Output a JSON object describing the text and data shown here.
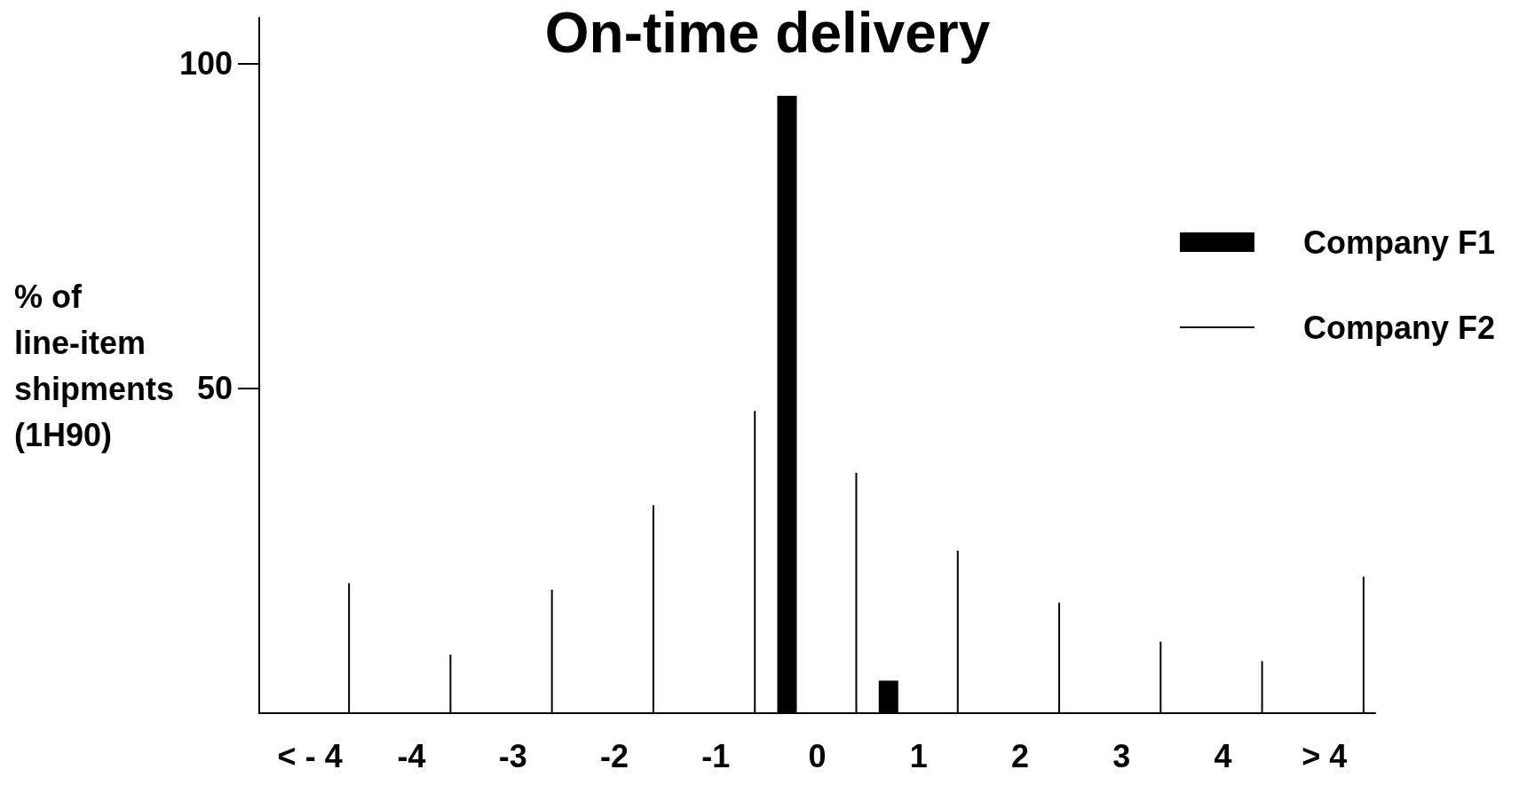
{
  "chart_data": {
    "type": "bar",
    "title": "On-time delivery",
    "ylabel": "% of\nline-item\nshipments\n(1H90)",
    "categories": [
      "< - 4",
      "-4",
      "-3",
      "-2",
      "-1",
      "0",
      "1",
      "2",
      "3",
      "4",
      "> 4"
    ],
    "series": [
      {
        "name": "Company F1",
        "color": "#000000",
        "values": [
          null,
          null,
          null,
          null,
          null,
          95,
          5,
          null,
          null,
          null,
          null
        ]
      },
      {
        "name": "Company F2",
        "color": "#000000",
        "values": [
          20,
          9,
          19,
          32,
          46.5,
          37,
          25,
          17,
          11,
          8,
          21
        ]
      }
    ],
    "ylim": [
      0,
      107
    ],
    "yticks": [
      50,
      100
    ],
    "grid": false,
    "legend": "right"
  }
}
